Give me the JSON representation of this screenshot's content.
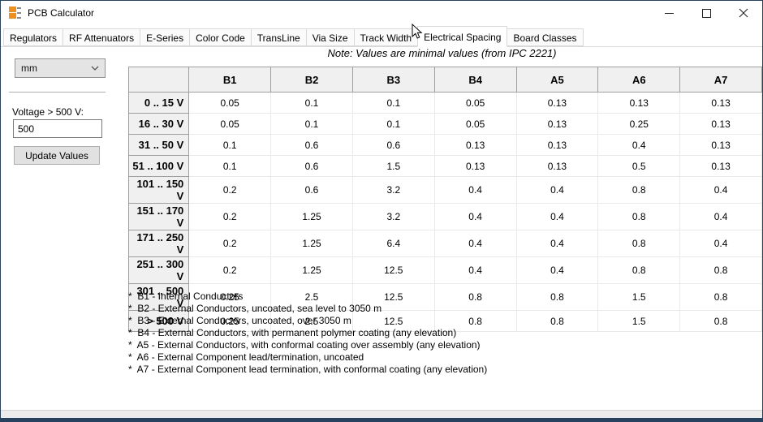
{
  "window": {
    "title": "PCB Calculator"
  },
  "tabs": [
    {
      "label": "Regulators",
      "selected": false
    },
    {
      "label": "RF Attenuators",
      "selected": false
    },
    {
      "label": "E-Series",
      "selected": false
    },
    {
      "label": "Color Code",
      "selected": false
    },
    {
      "label": "TransLine",
      "selected": false
    },
    {
      "label": "Via Size",
      "selected": false
    },
    {
      "label": "Track Width",
      "selected": false
    },
    {
      "label": "Electrical Spacing",
      "selected": true
    },
    {
      "label": "Board Classes",
      "selected": false
    }
  ],
  "note": "Note: Values are minimal values (from IPC 2221)",
  "controls": {
    "unit_selected": "mm",
    "voltage_label": "Voltage > 500 V:",
    "voltage_value": "500",
    "update_button": "Update Values"
  },
  "table": {
    "columns": [
      "B1",
      "B2",
      "B3",
      "B4",
      "A5",
      "A6",
      "A7"
    ],
    "rows": [
      {
        "label": "0 .. 15 V",
        "values": [
          "0.05",
          "0.1",
          "0.1",
          "0.05",
          "0.13",
          "0.13",
          "0.13"
        ]
      },
      {
        "label": "16 .. 30 V",
        "values": [
          "0.05",
          "0.1",
          "0.1",
          "0.05",
          "0.13",
          "0.25",
          "0.13"
        ]
      },
      {
        "label": "31 .. 50 V",
        "values": [
          "0.1",
          "0.6",
          "0.6",
          "0.13",
          "0.13",
          "0.4",
          "0.13"
        ]
      },
      {
        "label": "51 .. 100 V",
        "values": [
          "0.1",
          "0.6",
          "1.5",
          "0.13",
          "0.13",
          "0.5",
          "0.13"
        ]
      },
      {
        "label": "101 .. 150 V",
        "values": [
          "0.2",
          "0.6",
          "3.2",
          "0.4",
          "0.4",
          "0.8",
          "0.4"
        ]
      },
      {
        "label": "151 .. 170 V",
        "values": [
          "0.2",
          "1.25",
          "3.2",
          "0.4",
          "0.4",
          "0.8",
          "0.4"
        ]
      },
      {
        "label": "171 .. 250 V",
        "values": [
          "0.2",
          "1.25",
          "6.4",
          "0.4",
          "0.4",
          "0.8",
          "0.4"
        ]
      },
      {
        "label": "251 .. 300 V",
        "values": [
          "0.2",
          "1.25",
          "12.5",
          "0.4",
          "0.4",
          "0.8",
          "0.8"
        ]
      },
      {
        "label": "301 .. 500 V",
        "values": [
          "0.25",
          "2.5",
          "12.5",
          "0.8",
          "0.8",
          "1.5",
          "0.8"
        ]
      },
      {
        "label": "> 500 V",
        "values": [
          "0.25",
          "2.5",
          "12.5",
          "0.8",
          "0.8",
          "1.5",
          "0.8"
        ]
      }
    ]
  },
  "footnotes": [
    "*  B1 - Internal Conductors",
    "*  B2 - External Conductors, uncoated, sea level to 3050 m",
    "*  B3 - External Conductors, uncoated, over 3050 m",
    "*  B4 - External Conductors, with permanent polymer coating (any elevation)",
    "*  A5 - External Conductors, with conformal coating over assembly (any elevation)",
    "*  A6 - External Component lead/termination, uncoated",
    "*  A7 - External Component lead termination, with conformal coating (any elevation)"
  ],
  "icons": {
    "app": "calculator-icon",
    "minimize": "minimize-icon",
    "maximize": "maximize-icon",
    "close": "close-icon",
    "unit_chevron": "chevron-down-icon",
    "pointer": "arrow-cursor"
  },
  "colors": {
    "window_border": "#26425f",
    "tab_border": "#d9d9d9",
    "header_bg": "#f0f0f0",
    "header_border": "#9f9f9f",
    "grid_line": "#e9e9e9",
    "button_bg": "#e1e1e1",
    "icon_orange": "#ef8f1f"
  }
}
